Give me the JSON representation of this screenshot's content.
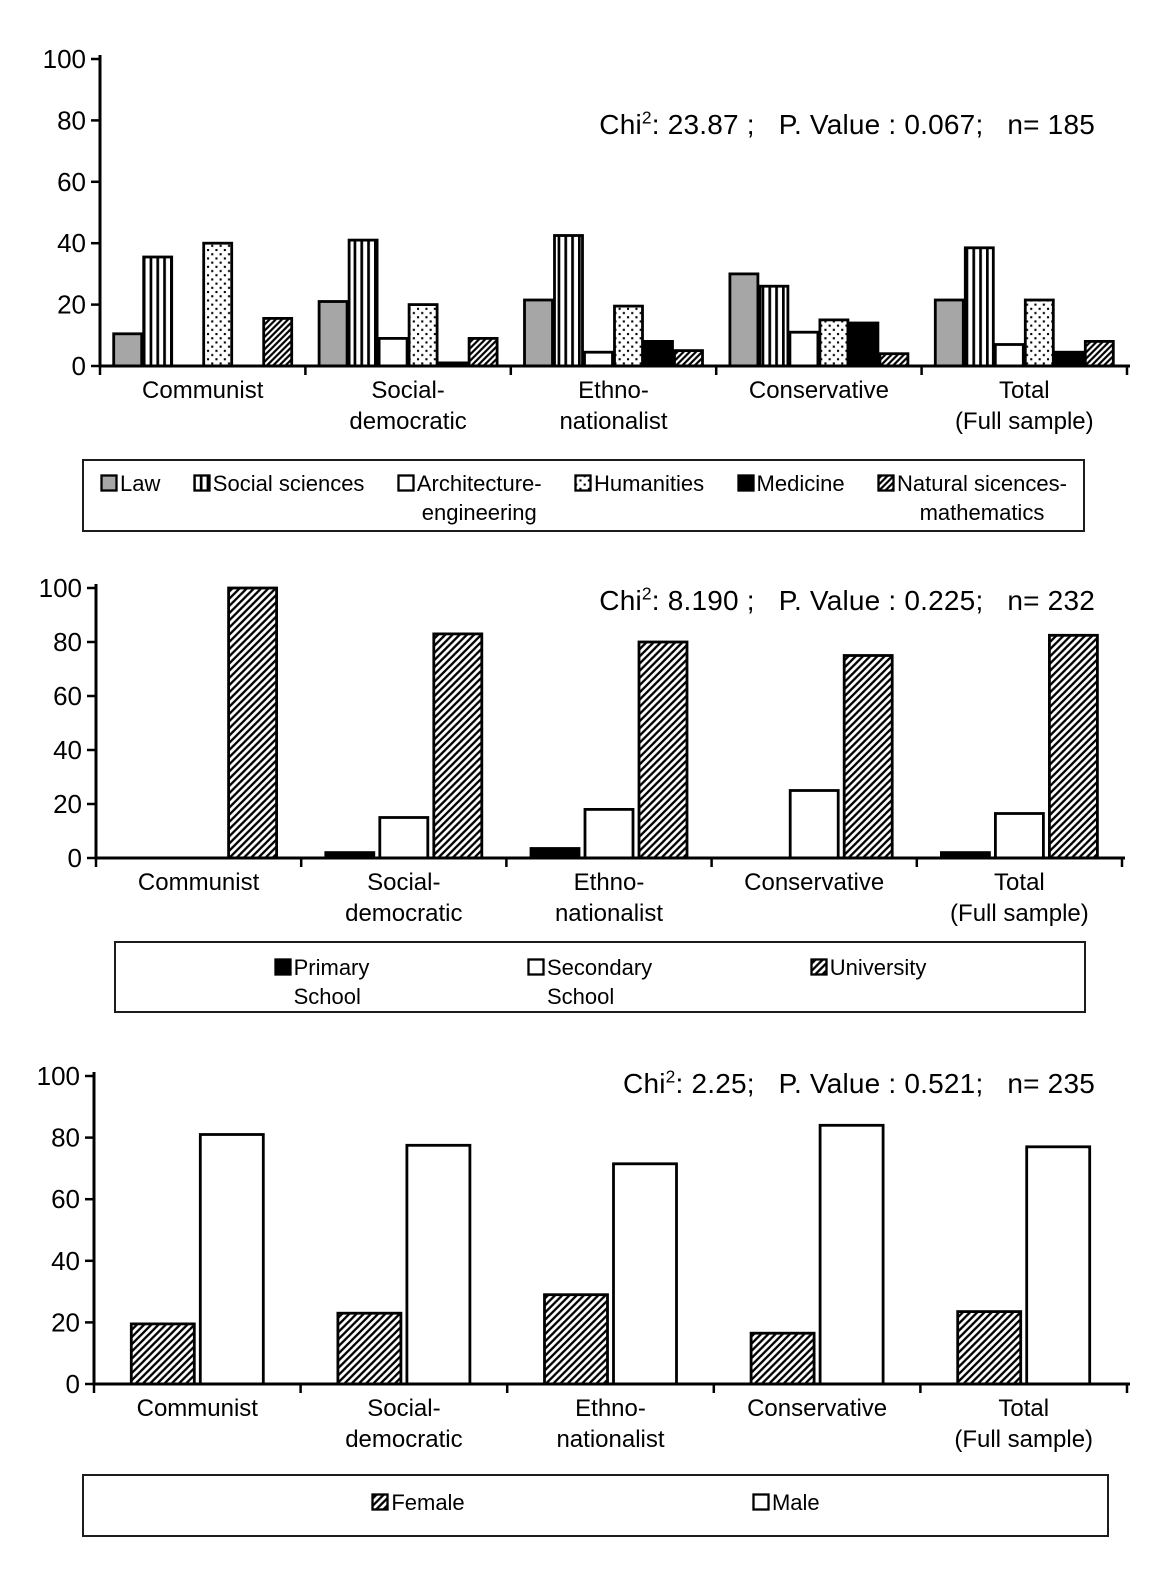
{
  "figure": {
    "background": "#ffffff",
    "ink_color": "#000000",
    "gray_fill": "#a6a6a6"
  },
  "chart_data": [
    {
      "type": "bar",
      "title": "",
      "annotation": {
        "prefix": "Chi",
        "sup": "2",
        "rest": ": 23.87 ;   P. Value : 0.067;   n= 185"
      },
      "categories": [
        [
          "Communist"
        ],
        [
          "Social-",
          "democratic"
        ],
        [
          "Ethno-",
          "nationalist"
        ],
        [
          "Conservative"
        ],
        [
          "Total",
          "(Full sample)"
        ]
      ],
      "series": [
        {
          "name": "Law",
          "lines": [
            "Law"
          ],
          "pattern": "gray",
          "values": [
            10.5,
            21,
            21.5,
            30,
            21.5
          ]
        },
        {
          "name": "Social sciences",
          "lines": [
            "Social sciences"
          ],
          "pattern": "vstripe",
          "values": [
            35.5,
            41,
            42.5,
            26,
            38.5
          ]
        },
        {
          "name": "Architecture-engineering",
          "lines": [
            "Architecture-",
            "engineering"
          ],
          "pattern": "plain",
          "values": [
            0,
            9,
            4.5,
            11,
            7
          ]
        },
        {
          "name": "Humanities",
          "lines": [
            "Humanities"
          ],
          "pattern": "dots",
          "values": [
            40,
            20,
            19.5,
            15,
            21.5
          ]
        },
        {
          "name": "Medicine",
          "lines": [
            "Medicine"
          ],
          "pattern": "black",
          "values": [
            0,
            1,
            8,
            14,
            4.5
          ]
        },
        {
          "name": "Natural sicences-mathematics",
          "lines": [
            "Natural sicences-",
            "mathematics"
          ],
          "pattern": "hatchfine",
          "values": [
            15.5,
            9,
            5,
            4,
            8
          ]
        }
      ],
      "ylim": [
        0,
        100
      ],
      "yticks": [
        0,
        20,
        40,
        60,
        80,
        100
      ],
      "grid": false,
      "legend_position": "bottom"
    },
    {
      "type": "bar",
      "title": "",
      "annotation": {
        "prefix": "Chi",
        "sup": "2",
        "rest": ": 8.190 ;   P. Value : 0.225;   n= 232"
      },
      "categories": [
        [
          "Communist"
        ],
        [
          "Social-",
          "democratic"
        ],
        [
          "Ethno-",
          "nationalist"
        ],
        [
          "Conservative"
        ],
        [
          "Total",
          "(Full sample)"
        ]
      ],
      "series": [
        {
          "name": "Primary School",
          "lines": [
            "Primary",
            "School"
          ],
          "pattern": "black",
          "values": [
            0,
            2,
            3.5,
            0,
            2
          ]
        },
        {
          "name": "Secondary School",
          "lines": [
            "Secondary",
            "School"
          ],
          "pattern": "plain",
          "values": [
            0,
            15,
            18,
            25,
            16.5
          ]
        },
        {
          "name": "University",
          "lines": [
            "University"
          ],
          "pattern": "hatch",
          "values": [
            100,
            83,
            80,
            75,
            82.5
          ]
        }
      ],
      "ylim": [
        0,
        100
      ],
      "yticks": [
        0,
        20,
        40,
        60,
        80,
        100
      ],
      "grid": false,
      "legend_position": "bottom"
    },
    {
      "type": "bar",
      "title": "",
      "annotation": {
        "prefix": "Chi",
        "sup": "2",
        "rest": ": 2.25;   P. Value : 0.521;   n= 235"
      },
      "categories": [
        [
          "Communist"
        ],
        [
          "Social-",
          "democratic"
        ],
        [
          "Ethno-",
          "nationalist"
        ],
        [
          "Conservative"
        ],
        [
          "Total",
          "(Full sample)"
        ]
      ],
      "series": [
        {
          "name": "Female",
          "lines": [
            "Female"
          ],
          "pattern": "hatch",
          "values": [
            19.5,
            23,
            29,
            16.5,
            23.5
          ]
        },
        {
          "name": "Male",
          "lines": [
            "Male"
          ],
          "pattern": "plain",
          "values": [
            81,
            77.5,
            71.5,
            84,
            77
          ]
        }
      ],
      "ylim": [
        0,
        100
      ],
      "yticks": [
        0,
        20,
        40,
        60,
        80,
        100
      ],
      "grid": false,
      "legend_position": "bottom"
    }
  ]
}
